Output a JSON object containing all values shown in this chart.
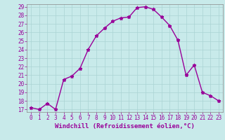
{
  "x": [
    0,
    1,
    2,
    3,
    4,
    5,
    6,
    7,
    8,
    9,
    10,
    11,
    12,
    13,
    14,
    15,
    16,
    17,
    18,
    19,
    20,
    21,
    22,
    23
  ],
  "y": [
    17.2,
    17.0,
    17.7,
    17.0,
    20.5,
    20.9,
    21.8,
    24.0,
    25.6,
    26.5,
    27.3,
    27.7,
    27.8,
    28.9,
    29.0,
    28.7,
    27.8,
    26.8,
    25.1,
    21.0,
    22.2,
    19.0,
    18.6,
    18.0
  ],
  "line_color": "#990099",
  "marker": "*",
  "marker_color": "#990099",
  "bg_color": "#c8eaea",
  "grid_color": "#aad4d4",
  "xlabel": "Windchill (Refroidissement éolien,°C)",
  "xlabel_color": "#990099",
  "tick_color": "#990099",
  "spine_color": "#888888",
  "ylim": [
    17,
    29
  ],
  "xlim": [
    -0.5,
    23.5
  ],
  "yticks": [
    17,
    18,
    19,
    20,
    21,
    22,
    23,
    24,
    25,
    26,
    27,
    28,
    29
  ],
  "xticks": [
    0,
    1,
    2,
    3,
    4,
    5,
    6,
    7,
    8,
    9,
    10,
    11,
    12,
    13,
    14,
    15,
    16,
    17,
    18,
    19,
    20,
    21,
    22,
    23
  ],
  "tick_fontsize": 5.5,
  "xlabel_fontsize": 6.5,
  "line_width": 1.0,
  "marker_size": 3.5
}
